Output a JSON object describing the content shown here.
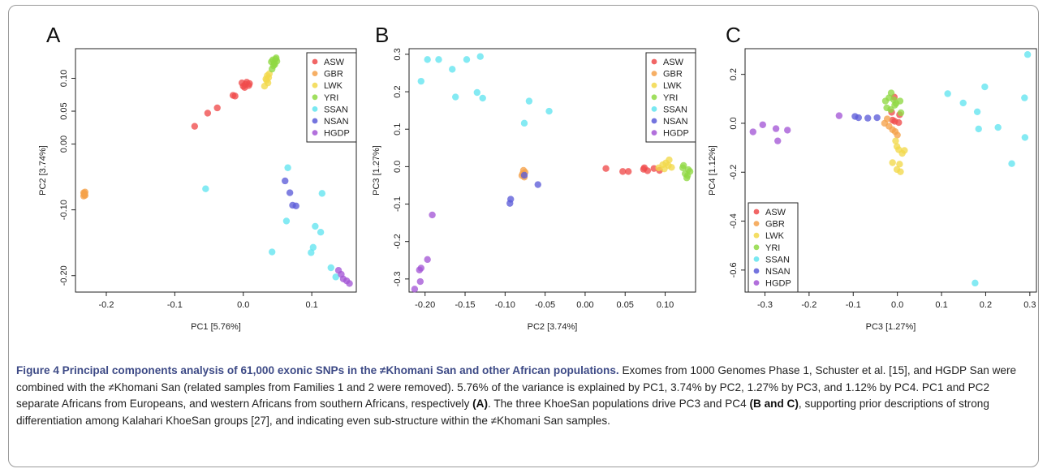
{
  "colors": {
    "ASW": "#ef4b4b",
    "GBR": "#f5a14a",
    "LWK": "#f2d84a",
    "YRI": "#8fd943",
    "SSAN": "#62e4ef",
    "NSAN": "#5c5cd8",
    "HGDP": "#a457d6"
  },
  "legend_entries": [
    "ASW",
    "GBR",
    "LWK",
    "YRI",
    "SSAN",
    "NSAN",
    "HGDP"
  ],
  "chart_data": [
    {
      "type": "scatter",
      "panel": "A",
      "xlabel": "PC1 [5.76%]",
      "ylabel": "PC2 [3.74%]",
      "xlim": [
        -0.245,
        0.165
      ],
      "ylim": [
        -0.225,
        0.145
      ],
      "xticks": [
        -0.2,
        -0.1,
        0.0,
        0.1
      ],
      "xtick_labels": [
        "-0.2",
        "-0.1",
        "0.0",
        "0.1"
      ],
      "yticks": [
        -0.2,
        -0.1,
        0.0,
        0.05,
        0.1
      ],
      "ytick_labels": [
        "-0.20",
        "-0.10",
        "0.00",
        "0.05",
        "0.10"
      ],
      "legend_position": "top-right",
      "series": [
        {
          "name": "ASW",
          "points": [
            [
              -0.071,
              0.027
            ],
            [
              -0.052,
              0.047
            ],
            [
              -0.038,
              0.055
            ],
            [
              -0.015,
              0.074
            ],
            [
              -0.012,
              0.073
            ],
            [
              -0.002,
              0.093
            ],
            [
              0.0,
              0.088
            ],
            [
              0.003,
              0.091
            ],
            [
              0.005,
              0.094
            ],
            [
              0.008,
              0.089
            ],
            [
              0.002,
              0.086
            ],
            [
              0.009,
              0.092
            ]
          ]
        },
        {
          "name": "GBR",
          "points": [
            [
              -0.233,
              -0.074
            ],
            [
              -0.232,
              -0.077
            ],
            [
              -0.231,
              -0.073
            ],
            [
              -0.233,
              -0.079
            ],
            [
              -0.232,
              -0.075
            ],
            [
              -0.231,
              -0.078
            ]
          ]
        },
        {
          "name": "LWK",
          "points": [
            [
              0.033,
              0.099
            ],
            [
              0.035,
              0.104
            ],
            [
              0.031,
              0.088
            ],
            [
              0.037,
              0.101
            ],
            [
              0.034,
              0.097
            ],
            [
              0.038,
              0.107
            ],
            [
              0.036,
              0.093
            ]
          ]
        },
        {
          "name": "YRI",
          "points": [
            [
              0.043,
              0.128
            ],
            [
              0.045,
              0.123
            ],
            [
              0.047,
              0.129
            ],
            [
              0.044,
              0.119
            ],
            [
              0.049,
              0.126
            ],
            [
              0.042,
              0.114
            ],
            [
              0.046,
              0.121
            ],
            [
              0.041,
              0.125
            ],
            [
              0.048,
              0.131
            ]
          ]
        },
        {
          "name": "SSAN",
          "points": [
            [
              -0.055,
              -0.068
            ],
            [
              0.065,
              -0.036
            ],
            [
              0.115,
              -0.075
            ],
            [
              0.063,
              -0.117
            ],
            [
              0.105,
              -0.125
            ],
            [
              0.113,
              -0.134
            ],
            [
              0.102,
              -0.157
            ],
            [
              0.099,
              -0.165
            ],
            [
              0.042,
              -0.164
            ],
            [
              0.128,
              -0.188
            ],
            [
              0.135,
              -0.202
            ]
          ]
        },
        {
          "name": "NSAN",
          "points": [
            [
              0.061,
              -0.056
            ],
            [
              0.068,
              -0.074
            ],
            [
              0.072,
              -0.093
            ],
            [
              0.077,
              -0.094
            ]
          ]
        },
        {
          "name": "HGDP",
          "points": [
            [
              0.139,
              -0.192
            ],
            [
              0.143,
              -0.198
            ],
            [
              0.146,
              -0.205
            ],
            [
              0.151,
              -0.208
            ],
            [
              0.155,
              -0.212
            ]
          ]
        }
      ]
    },
    {
      "type": "scatter",
      "panel": "B",
      "xlabel": "PC2 [3.74%]",
      "ylabel": "PC3 [1.27%]",
      "xlim": [
        -0.22,
        0.138
      ],
      "ylim": [
        -0.335,
        0.315
      ],
      "xticks": [
        -0.2,
        -0.15,
        -0.1,
        -0.05,
        0.0,
        0.05,
        0.1
      ],
      "xtick_labels": [
        "-0.20",
        "-0.15",
        "-0.10",
        "-0.05",
        "0.00",
        "0.05",
        "0.10"
      ],
      "yticks": [
        -0.3,
        -0.2,
        -0.1,
        0.0,
        0.1,
        0.2,
        0.3
      ],
      "ytick_labels": [
        "-0.3",
        "-0.2",
        "-0.1",
        "0.0",
        "0.1",
        "0.2",
        "0.3"
      ],
      "legend_position": "top-right",
      "series": [
        {
          "name": "ASW",
          "points": [
            [
              0.026,
              -0.005
            ],
            [
              0.047,
              -0.013
            ],
            [
              0.054,
              -0.013
            ],
            [
              0.073,
              -0.007
            ],
            [
              0.078,
              -0.011
            ],
            [
              0.086,
              -0.005
            ],
            [
              0.093,
              -0.01
            ],
            [
              0.074,
              -0.003
            ]
          ]
        },
        {
          "name": "GBR",
          "points": [
            [
              -0.077,
              -0.01
            ],
            [
              -0.078,
              -0.019
            ],
            [
              -0.076,
              -0.028
            ],
            [
              -0.075,
              -0.015
            ],
            [
              -0.079,
              -0.024
            ]
          ]
        },
        {
          "name": "LWK",
          "points": [
            [
              0.092,
              -0.003
            ],
            [
              0.097,
              0.005
            ],
            [
              0.101,
              0.01
            ],
            [
              0.105,
              0.018
            ],
            [
              0.099,
              -0.006
            ],
            [
              0.108,
              -0.002
            ],
            [
              0.104,
              0.003
            ]
          ]
        },
        {
          "name": "YRI",
          "points": [
            [
              0.122,
              -0.003
            ],
            [
              0.125,
              -0.019
            ],
            [
              0.127,
              -0.03
            ],
            [
              0.129,
              -0.008
            ],
            [
              0.123,
              0.003
            ],
            [
              0.128,
              -0.024
            ],
            [
              0.131,
              -0.013
            ]
          ]
        },
        {
          "name": "SSAN",
          "points": [
            [
              -0.197,
              0.286
            ],
            [
              -0.183,
              0.286
            ],
            [
              -0.148,
              0.286
            ],
            [
              -0.131,
              0.294
            ],
            [
              -0.205,
              0.228
            ],
            [
              -0.166,
              0.26
            ],
            [
              -0.135,
              0.198
            ],
            [
              -0.128,
              0.183
            ],
            [
              -0.162,
              0.186
            ],
            [
              -0.07,
              0.175
            ],
            [
              -0.045,
              0.148
            ],
            [
              -0.076,
              0.116
            ]
          ]
        },
        {
          "name": "NSAN",
          "points": [
            [
              -0.076,
              -0.023
            ],
            [
              -0.059,
              -0.048
            ],
            [
              -0.093,
              -0.087
            ],
            [
              -0.094,
              -0.098
            ]
          ]
        },
        {
          "name": "HGDP",
          "points": [
            [
              -0.191,
              -0.129
            ],
            [
              -0.197,
              -0.248
            ],
            [
              -0.205,
              -0.271
            ],
            [
              -0.207,
              -0.276
            ],
            [
              -0.206,
              -0.307
            ],
            [
              -0.213,
              -0.327
            ]
          ]
        }
      ]
    },
    {
      "type": "scatter",
      "panel": "C",
      "xlabel": "PC3 [1.27%]",
      "ylabel": "PC4 [1.12%]",
      "xlim": [
        -0.345,
        0.315
      ],
      "ylim": [
        -0.69,
        0.305
      ],
      "xticks": [
        -0.3,
        -0.2,
        -0.1,
        0.0,
        0.1,
        0.2,
        0.3
      ],
      "xtick_labels": [
        "-0.3",
        "-0.2",
        "-0.1",
        "0.0",
        "0.1",
        "0.2",
        "0.3"
      ],
      "yticks": [
        -0.6,
        -0.4,
        -0.2,
        0.0,
        0.2
      ],
      "ytick_labels": [
        "-0.6",
        "-0.4",
        "-0.2",
        "0.0",
        "0.2"
      ],
      "legend_position": "bottom-left",
      "series": [
        {
          "name": "ASW",
          "points": [
            [
              -0.006,
              0.008
            ],
            [
              0.003,
              0.003
            ],
            [
              -0.011,
              0.013
            ],
            [
              -0.007,
              0.107
            ],
            [
              0.005,
              0.035
            ],
            [
              -0.013,
              0.045
            ]
          ]
        },
        {
          "name": "GBR",
          "points": [
            [
              -0.029,
              0.0
            ],
            [
              -0.019,
              -0.012
            ],
            [
              -0.011,
              -0.026
            ],
            [
              -0.005,
              -0.034
            ],
            [
              0.0,
              -0.048
            ],
            [
              -0.023,
              0.018
            ]
          ]
        },
        {
          "name": "LWK",
          "points": [
            [
              -0.004,
              -0.072
            ],
            [
              -0.001,
              -0.095
            ],
            [
              0.003,
              -0.108
            ],
            [
              0.011,
              -0.123
            ],
            [
              0.016,
              -0.111
            ],
            [
              -0.011,
              -0.161
            ],
            [
              0.005,
              -0.167
            ],
            [
              -0.001,
              -0.189
            ],
            [
              0.007,
              -0.198
            ]
          ]
        },
        {
          "name": "YRI",
          "points": [
            [
              -0.027,
              0.091
            ],
            [
              -0.019,
              0.104
            ],
            [
              -0.014,
              0.124
            ],
            [
              -0.008,
              0.096
            ],
            [
              -0.003,
              0.081
            ],
            [
              0.006,
              0.091
            ],
            [
              -0.024,
              0.063
            ],
            [
              -0.015,
              0.056
            ],
            [
              0.008,
              0.043
            ],
            [
              -0.006,
              0.074
            ]
          ]
        },
        {
          "name": "SSAN",
          "points": [
            [
              0.295,
              0.281
            ],
            [
              0.198,
              0.149
            ],
            [
              0.114,
              0.121
            ],
            [
              0.149,
              0.083
            ],
            [
              0.181,
              0.047
            ],
            [
              0.288,
              0.104
            ],
            [
              0.184,
              -0.023
            ],
            [
              0.228,
              -0.017
            ],
            [
              0.289,
              -0.058
            ],
            [
              0.259,
              -0.165
            ],
            [
              0.176,
              -0.653
            ]
          ]
        },
        {
          "name": "NSAN",
          "points": [
            [
              -0.096,
              0.028
            ],
            [
              -0.088,
              0.023
            ],
            [
              -0.067,
              0.021
            ],
            [
              -0.046,
              0.023
            ]
          ]
        },
        {
          "name": "HGDP",
          "points": [
            [
              -0.327,
              -0.035
            ],
            [
              -0.305,
              -0.006
            ],
            [
              -0.275,
              -0.022
            ],
            [
              -0.249,
              -0.028
            ],
            [
              -0.271,
              -0.072
            ],
            [
              -0.132,
              0.031
            ]
          ]
        }
      ]
    }
  ],
  "caption": {
    "title": "Figure 4 Principal components analysis of 61,000 exonic SNPs in the ≠Khomani San and other African populations.",
    "text_1": " Exomes from 1000 Genomes Phase 1, Schuster et al. [15], and HGDP San were combined with the ≠Khomani San (related samples from Families 1 and 2 were removed). 5.76% of the variance is explained by PC1, 3.74% by PC2, 1.27% by PC3, and 1.12% by PC4. PC1 and PC2 separate Africans from Europeans, and western Africans from southern Africans, respectively ",
    "ref_a": "(A)",
    "text_2": ". The three KhoeSan populations drive PC3 and PC4 ",
    "ref_bc": "(B and C)",
    "text_3": ", supporting prior descriptions of strong differentiation among Kalahari KhoeSan groups [27], and indicating even sub-structure within the ≠Khomani San samples."
  }
}
